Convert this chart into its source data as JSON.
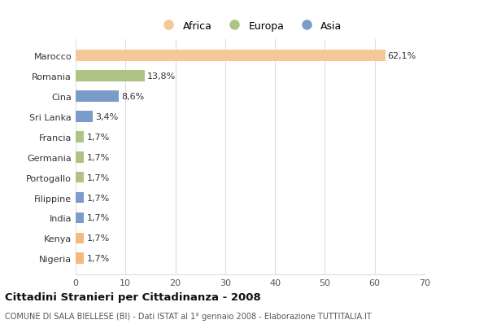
{
  "categories": [
    "Nigeria",
    "Kenya",
    "India",
    "Filippine",
    "Portogallo",
    "Germania",
    "Francia",
    "Sri Lanka",
    "Cina",
    "Romania",
    "Marocco"
  ],
  "values": [
    1.7,
    1.7,
    1.7,
    1.7,
    1.7,
    1.7,
    1.7,
    3.4,
    8.6,
    13.8,
    62.1
  ],
  "labels": [
    "1,7%",
    "1,7%",
    "1,7%",
    "1,7%",
    "1,7%",
    "1,7%",
    "1,7%",
    "3,4%",
    "8,6%",
    "13,8%",
    "62,1%"
  ],
  "colors": [
    "#f5b97f",
    "#f5b97f",
    "#7b9cca",
    "#7b9cca",
    "#aec484",
    "#aec484",
    "#aec484",
    "#7b9cca",
    "#7b9cca",
    "#aec484",
    "#f5c89a"
  ],
  "legend_labels": [
    "Africa",
    "Europa",
    "Asia"
  ],
  "legend_colors": [
    "#f5c89a",
    "#aec484",
    "#7b9cca"
  ],
  "xlim": [
    0,
    70
  ],
  "xticks": [
    0,
    10,
    20,
    30,
    40,
    50,
    60,
    70
  ],
  "title": "Cittadini Stranieri per Cittadinanza - 2008",
  "subtitle": "COMUNE DI SALA BIELLESE (BI) - Dati ISTAT al 1° gennaio 2008 - Elaborazione TUTTITALIA.IT",
  "bg_color": "#ffffff",
  "grid_color": "#dddddd"
}
